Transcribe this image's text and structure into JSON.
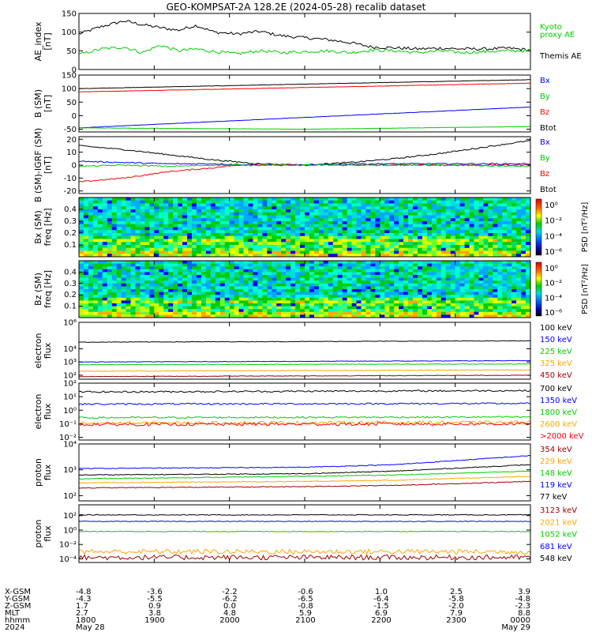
{
  "title": "GEO-KOMPSAT-2A 128.2E (2024-05-28) recalib dataset",
  "colors": {
    "black": "#000000",
    "green": "#00cc00",
    "blue": "#0000ff",
    "red": "#ff0000",
    "orange": "#ffa500",
    "darkred": "#990000"
  },
  "chart_data": [
    {
      "id": "ae",
      "type": "line",
      "ylabel": "AE_index",
      "ylabel2": "[nT]",
      "ylim": [
        0,
        150
      ],
      "yticks": [
        "0",
        "50",
        "100",
        "150"
      ],
      "legend": [
        {
          "label": "Kyoto",
          "color": "#00cc00"
        },
        {
          "label": "proxy AE",
          "color": "#00cc00"
        },
        {
          "label": "Themis AE",
          "color": "#000000"
        }
      ],
      "series": [
        {
          "name": "Themis AE",
          "color": "#000000",
          "x": [
            0,
            0.05,
            0.1,
            0.14,
            0.18,
            0.22,
            0.26,
            0.3,
            0.35,
            0.4,
            0.45,
            0.5,
            0.55,
            0.6,
            0.65,
            0.7,
            0.75,
            0.8,
            0.85,
            0.9,
            0.95,
            1.0
          ],
          "y": [
            95,
            115,
            130,
            120,
            112,
            105,
            118,
            100,
            95,
            102,
            90,
            85,
            80,
            72,
            60,
            58,
            55,
            57,
            55,
            55,
            57,
            52
          ]
        },
        {
          "name": "Kyoto proxy AE",
          "color": "#00cc00",
          "x": [
            0,
            0.05,
            0.1,
            0.14,
            0.18,
            0.22,
            0.26,
            0.3,
            0.35,
            0.4,
            0.45,
            0.5,
            0.55,
            0.6,
            0.65,
            0.7,
            0.75,
            0.8,
            0.85,
            0.9,
            0.95,
            1.0
          ],
          "y": [
            40,
            55,
            60,
            45,
            65,
            50,
            55,
            48,
            42,
            50,
            45,
            48,
            50,
            45,
            52,
            50,
            45,
            50,
            45,
            48,
            50,
            50
          ]
        }
      ]
    },
    {
      "id": "bsm",
      "type": "line",
      "ylabel": "B (SM)",
      "ylabel2": "[nT]",
      "ylim": [
        -60,
        150
      ],
      "yticks": [
        "150",
        "100",
        "50",
        "0",
        "-50"
      ],
      "yticks_v": [
        150,
        100,
        50,
        0,
        -50
      ],
      "legend": [
        {
          "label": "Bx",
          "color": "#0000ff"
        },
        {
          "label": "By",
          "color": "#00cc00"
        },
        {
          "label": "Bz",
          "color": "#ff0000"
        },
        {
          "label": "Btot",
          "color": "#000000"
        }
      ],
      "series": [
        {
          "name": "Btot",
          "color": "#000000",
          "x": [
            0,
            1
          ],
          "y": [
            100,
            133
          ]
        },
        {
          "name": "Bz",
          "color": "#ff0000",
          "x": [
            0,
            1
          ],
          "y": [
            88,
            120
          ]
        },
        {
          "name": "Bx",
          "color": "#0000ff",
          "x": [
            0,
            1
          ],
          "y": [
            -45,
            32
          ]
        },
        {
          "name": "By",
          "color": "#00cc00",
          "x": [
            0,
            0.5,
            1
          ],
          "y": [
            -45,
            -50,
            -40
          ]
        }
      ]
    },
    {
      "id": "bigrf",
      "type": "line",
      "ylabel": "B (SM)-IGRF (SM)",
      "ylabel2": "[nT]",
      "ylim": [
        -22,
        22
      ],
      "yticks": [
        "20",
        "10",
        "0",
        "-10",
        "-20"
      ],
      "yticks_v": [
        20,
        10,
        0,
        -10,
        -20
      ],
      "legend": [
        {
          "label": "Bx",
          "color": "#0000ff"
        },
        {
          "label": "By",
          "color": "#00cc00"
        },
        {
          "label": "Bz",
          "color": "#ff0000"
        },
        {
          "label": "Btot",
          "color": "#000000"
        }
      ],
      "series": [
        {
          "name": "Btot",
          "color": "#000000",
          "x": [
            0,
            0.1,
            0.2,
            0.3,
            0.4,
            0.5,
            0.6,
            0.7,
            0.8,
            0.9,
            1.0
          ],
          "y": [
            15,
            12,
            8,
            4,
            1,
            0,
            2,
            5,
            9,
            14,
            19
          ]
        },
        {
          "name": "Bz",
          "color": "#ff0000",
          "x": [
            0,
            0.1,
            0.2,
            0.3,
            0.35,
            0.4,
            0.5,
            0.7,
            1.0
          ],
          "y": [
            -13,
            -10,
            -5,
            -2,
            0,
            1,
            0,
            0,
            0
          ]
        },
        {
          "name": "Bx",
          "color": "#0000ff",
          "x": [
            0,
            0.1,
            0.2,
            0.3,
            0.4,
            0.5,
            0.6,
            0.8,
            1.0
          ],
          "y": [
            3,
            2,
            1,
            1,
            0,
            0,
            1,
            1,
            1
          ]
        },
        {
          "name": "By",
          "color": "#00cc00",
          "x": [
            0,
            0.1,
            0.2,
            0.3,
            0.4,
            0.5,
            0.6,
            0.8,
            1.0
          ],
          "y": [
            -1,
            0,
            -1,
            0,
            0,
            0,
            0,
            0,
            -1
          ]
        }
      ]
    },
    {
      "id": "bxspec",
      "type": "heatmap",
      "ylabel": "Bx (SM)",
      "ylabel2": "freq [Hz]",
      "yticks": [
        "0.4",
        "0.3",
        "0.2",
        "0.1"
      ],
      "cbar_label": "PSD [nT²/Hz]",
      "cbar_ticks": [
        "10⁰",
        "10⁻²",
        "10⁻⁴",
        "10⁻⁶"
      ]
    },
    {
      "id": "bzspec",
      "type": "heatmap",
      "ylabel": "Bz (SM)",
      "ylabel2": "freq [Hz]",
      "yticks": [
        "0.4",
        "0.3",
        "0.2",
        "0.1"
      ],
      "cbar_label": "PSD [nT²/Hz]",
      "cbar_ticks": [
        "10⁰",
        "10⁻²",
        "10⁻⁴",
        "10⁻⁶"
      ]
    },
    {
      "id": "elec1",
      "type": "line",
      "yscale": "log",
      "ylabel": "electron",
      "ylabel2": "flux",
      "ylim_exp": [
        1.7,
        6
      ],
      "yticks": [
        "10⁶",
        "10⁴",
        "10³",
        "10²"
      ],
      "yticks_v": [
        6,
        4,
        3,
        2
      ],
      "legend": [
        {
          "label": "100 keV",
          "color": "#000000"
        },
        {
          "label": "150 keV",
          "color": "#0000ff"
        },
        {
          "label": "225 keV",
          "color": "#00cc00"
        },
        {
          "label": "325 keV",
          "color": "#ffa500"
        },
        {
          "label": "450 keV",
          "color": "#990000"
        }
      ],
      "series": [
        {
          "name": "100 keV",
          "color": "#000000",
          "x": [
            0,
            1
          ],
          "y": [
            4.5,
            4.6
          ]
        },
        {
          "name": "150 keV",
          "color": "#0000ff",
          "x": [
            0,
            1
          ],
          "y": [
            3.0,
            3.1
          ]
        },
        {
          "name": "225 keV",
          "color": "#00cc00",
          "x": [
            0,
            1
          ],
          "y": [
            2.8,
            2.85
          ]
        },
        {
          "name": "325 keV",
          "color": "#ffa500",
          "x": [
            0,
            1
          ],
          "y": [
            2.3,
            2.4
          ]
        },
        {
          "name": "450 keV",
          "color": "#990000",
          "x": [
            0,
            1
          ],
          "y": [
            1.9,
            2.0
          ]
        }
      ]
    },
    {
      "id": "elec2",
      "type": "line",
      "yscale": "log",
      "ylabel": "electron",
      "ylabel2": "flux",
      "ylim_exp": [
        -2.2,
        2
      ],
      "yticks": [
        "10²",
        "10¹",
        "10⁰",
        "10⁻¹",
        "10⁻²"
      ],
      "yticks_v": [
        2,
        1,
        0,
        -1,
        -2
      ],
      "legend": [
        {
          "label": "700 keV",
          "color": "#000000"
        },
        {
          "label": "1350 keV",
          "color": "#0000ff"
        },
        {
          "label": "1800 keV",
          "color": "#00cc00"
        },
        {
          "label": "2600 keV",
          "color": "#ffa500"
        },
        {
          "label": ">2000 keV",
          "color": "#ff0000"
        }
      ],
      "series": [
        {
          "name": "700 keV",
          "color": "#000000",
          "x": [
            0,
            1
          ],
          "y": [
            1.35,
            1.45
          ]
        },
        {
          "name": "1350 keV",
          "color": "#0000ff",
          "x": [
            0,
            1
          ],
          "y": [
            0.45,
            0.5
          ]
        },
        {
          "name": "1800 keV",
          "color": "#00cc00",
          "x": [
            0,
            1
          ],
          "y": [
            -0.55,
            -0.5
          ]
        },
        {
          "name": "2600 keV",
          "color": "#ffa500",
          "x": [
            0,
            1
          ],
          "y": [
            -0.95,
            -0.9
          ]
        },
        {
          "name": ">2000 keV",
          "color": "#ff0000",
          "x": [
            0,
            1
          ],
          "y": [
            -1.05,
            -1.0
          ]
        }
      ]
    },
    {
      "id": "prot1",
      "type": "line",
      "yscale": "log",
      "ylabel": "proton",
      "ylabel2": "flux",
      "ylim_exp": [
        1.8,
        4
      ],
      "yticks": [
        "10⁴",
        "10³",
        "10²"
      ],
      "yticks_v": [
        4,
        3,
        2
      ],
      "legend": [
        {
          "label": "354 keV",
          "color": "#990000"
        },
        {
          "label": "229 keV",
          "color": "#ffa500"
        },
        {
          "label": "148 keV",
          "color": "#00cc00"
        },
        {
          "label": "119 keV",
          "color": "#0000ff"
        },
        {
          "label": "77 keV",
          "color": "#000000"
        }
      ],
      "series": [
        {
          "name": "119 keV",
          "color": "#0000ff",
          "x": [
            0,
            0.5,
            0.7,
            1
          ],
          "y": [
            3.05,
            3.1,
            3.2,
            3.55
          ]
        },
        {
          "name": "77 keV",
          "color": "#000000",
          "x": [
            0,
            0.5,
            0.7,
            1
          ],
          "y": [
            2.8,
            2.85,
            2.95,
            3.2
          ]
        },
        {
          "name": "148 keV",
          "color": "#00cc00",
          "x": [
            0,
            0.5,
            0.7,
            1
          ],
          "y": [
            2.65,
            2.75,
            2.8,
            2.95
          ]
        },
        {
          "name": "229 keV",
          "color": "#ffa500",
          "x": [
            0,
            0.5,
            0.7,
            1
          ],
          "y": [
            2.5,
            2.55,
            2.6,
            2.75
          ]
        },
        {
          "name": "354 keV",
          "color": "#990000",
          "x": [
            0,
            0.5,
            0.7,
            1
          ],
          "y": [
            2.3,
            2.35,
            2.4,
            2.55
          ]
        }
      ]
    },
    {
      "id": "prot2",
      "type": "line",
      "yscale": "log",
      "ylabel": "proton",
      "ylabel2": "flux",
      "ylim_exp": [
        -4.5,
        3.5
      ],
      "yticks": [
        "10²",
        "10⁰",
        "10⁻²",
        "10⁻⁴"
      ],
      "yticks_v": [
        2,
        0,
        -2,
        -4
      ],
      "legend": [
        {
          "label": "3123 keV",
          "color": "#990000"
        },
        {
          "label": "2021 keV",
          "color": "#ffa500"
        },
        {
          "label": "1052 keV",
          "color": "#00cc00"
        },
        {
          "label": "681 keV",
          "color": "#0000ff"
        },
        {
          "label": "548 keV",
          "color": "#000000"
        }
      ],
      "series": [
        {
          "name": "548 keV",
          "color": "#000000",
          "x": [
            0,
            1
          ],
          "y": [
            2.1,
            2.1
          ]
        },
        {
          "name": "681 keV",
          "color": "#0000ff",
          "x": [
            0,
            1
          ],
          "y": [
            1.2,
            1.2
          ]
        },
        {
          "name": "1052 keV",
          "color": "#00cc00",
          "x": [
            0,
            1
          ],
          "y": [
            -0.2,
            -0.2
          ]
        },
        {
          "name": "2021 keV",
          "color": "#ffa500",
          "x": [
            0,
            1
          ],
          "y": [
            -3.0,
            -3.0
          ]
        },
        {
          "name": "3123 keV",
          "color": "#990000",
          "x": [
            0,
            1
          ],
          "y": [
            -3.8,
            -3.8
          ]
        }
      ]
    }
  ],
  "axis_table": {
    "row_labels": [
      "X-GSM",
      "Y-GSM",
      "Z-GSM",
      "MLT",
      "hhmm",
      "2024"
    ],
    "columns": [
      [
        "-4.8",
        "-4.3",
        "1.7",
        "2.7",
        "1800",
        "May 28"
      ],
      [
        "-3.6",
        "-5.5",
        "0.9",
        "3.8",
        "1900",
        ""
      ],
      [
        "-2.2",
        "-6.2",
        "0.0",
        "4.8",
        "2000",
        ""
      ],
      [
        "-0.6",
        "-6.5",
        "-0.8",
        "5.9",
        "2100",
        ""
      ],
      [
        "1.0",
        "-6.4",
        "-1.5",
        "6.9",
        "2200",
        ""
      ],
      [
        "2.5",
        "-5.8",
        "-2.0",
        "7.9",
        "2300",
        ""
      ],
      [
        "3.9",
        "-4.8",
        "-2.3",
        "8.8",
        "0000",
        "May 29"
      ]
    ]
  }
}
